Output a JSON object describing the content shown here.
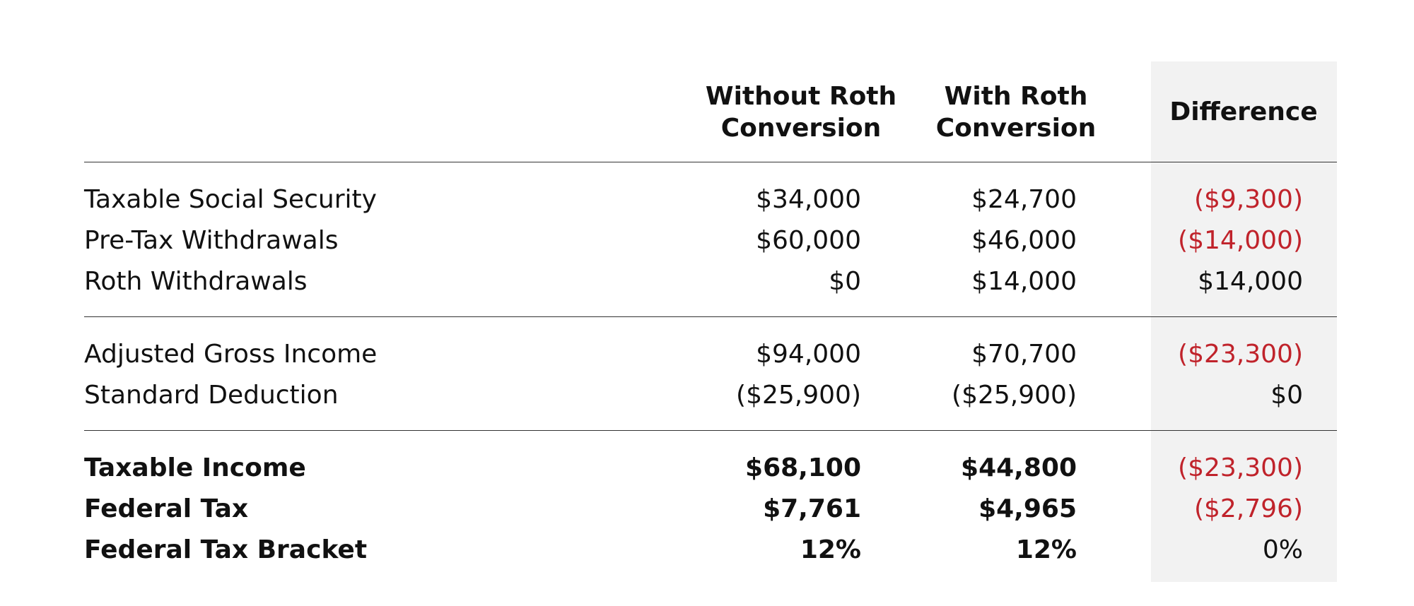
{
  "table": {
    "columns": [
      "Without Roth\nConversion",
      "With Roth\nConversion",
      "Difference"
    ],
    "groups": [
      [
        {
          "label": "Taxable Social Security",
          "values": [
            "$34,000",
            "$24,700",
            "($9,300)"
          ]
        },
        {
          "label": "Pre-Tax Withdrawals",
          "values": [
            "$60,000",
            "$46,000",
            "($14,000)"
          ]
        },
        {
          "label": "Roth Withdrawals",
          "values": [
            "$0",
            "$14,000",
            "$14,000"
          ]
        }
      ],
      [
        {
          "label": "Adjusted Gross Income",
          "values": [
            "$94,000",
            "$70,700",
            "($23,300)"
          ]
        },
        {
          "label": "Standard Deduction",
          "values": [
            "($25,900)",
            "($25,900)",
            "$0"
          ]
        }
      ],
      [
        {
          "label": "Taxable Income",
          "values": [
            "$68,100",
            "$44,800",
            "($23,300)"
          ]
        },
        {
          "label": "Federal Tax",
          "values": [
            "$7,761",
            "$4,965",
            "($2,796)"
          ]
        },
        {
          "label": "Federal Tax Bracket",
          "values": [
            "12%",
            "12%",
            "0%"
          ]
        }
      ]
    ]
  }
}
